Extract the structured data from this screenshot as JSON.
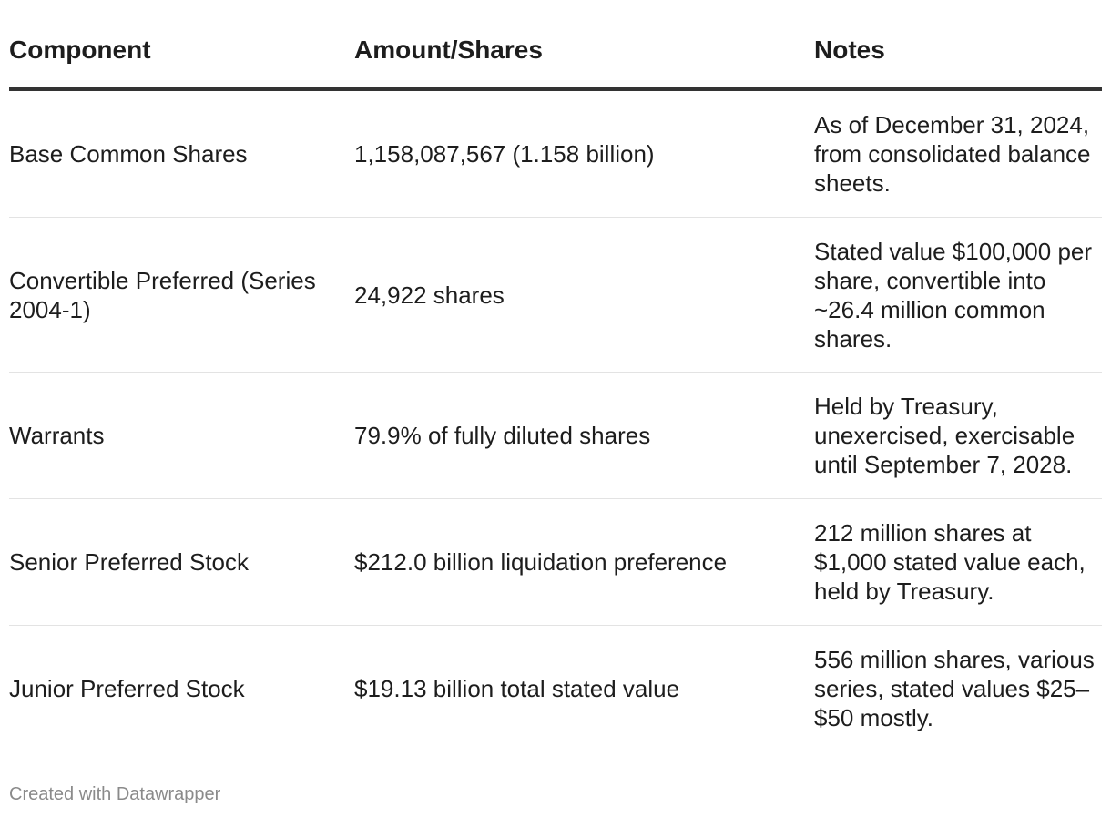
{
  "chart_data": {
    "type": "table",
    "columns": [
      "Component",
      "Amount/Shares",
      "Notes"
    ],
    "rows": [
      {
        "component": "Base Common Shares",
        "amount": "1,158,087,567 (1.158 billion)",
        "notes": "As of December 31, 2024, from consolidated balance sheets."
      },
      {
        "component": "Convertible Preferred (Series 2004-1)",
        "amount": "24,922 shares",
        "notes": "Stated value $100,000 per share, convertible into ~26.4 million common shares."
      },
      {
        "component": "Warrants",
        "amount": "79.9% of fully diluted shares",
        "notes": "Held by Treasury, unexercised, exercisable until September 7, 2028."
      },
      {
        "component": "Senior Preferred Stock",
        "amount": "$212.0 billion liquidation preference",
        "notes": "212 million shares at $1,000 stated value each, held by Treasury."
      },
      {
        "component": "Junior Preferred Stock",
        "amount": "$19.13 billion total stated value",
        "notes": "556 million shares, various series, stated values $25–$50 mostly."
      }
    ]
  },
  "footer": {
    "credit": "Created with Datawrapper"
  }
}
